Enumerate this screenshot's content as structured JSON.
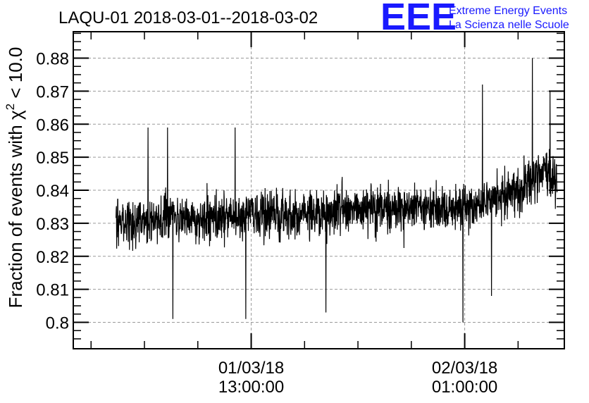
{
  "chart_data": {
    "type": "line",
    "title": "LAQU-01 2018-03-01--2018-03-02",
    "ylabel_prefix": "Fraction of events with ",
    "ylabel_symbol": "χ",
    "ylabel_sup": "2",
    "ylabel_suffix": " < 10.0",
    "xlabel": "",
    "ylim": [
      0.792,
      0.888
    ],
    "yticks": [
      "0.8",
      "0.81",
      "0.82",
      "0.83",
      "0.84",
      "0.85",
      "0.86",
      "0.87",
      "0.88"
    ],
    "ytick_values": [
      0.8,
      0.81,
      0.82,
      0.83,
      0.84,
      0.85,
      0.86,
      0.87,
      0.88
    ],
    "xlim_hours": [
      3.0,
      30.6
    ],
    "xticks": [
      {
        "hour": 13,
        "date": "01/03/18",
        "time": "13:00:00"
      },
      {
        "hour": 25,
        "date": "02/03/18",
        "time": "01:00:00"
      }
    ],
    "grid": true,
    "series_trend": [
      {
        "hour": 5.4,
        "y": 0.83
      },
      {
        "hour": 9.0,
        "y": 0.831
      },
      {
        "hour": 12.0,
        "y": 0.832
      },
      {
        "hour": 15.0,
        "y": 0.832
      },
      {
        "hour": 18.0,
        "y": 0.834
      },
      {
        "hour": 21.0,
        "y": 0.835
      },
      {
        "hour": 24.0,
        "y": 0.834
      },
      {
        "hour": 26.0,
        "y": 0.836
      },
      {
        "hour": 28.0,
        "y": 0.84
      },
      {
        "hour": 29.5,
        "y": 0.846
      },
      {
        "hour": 30.2,
        "y": 0.843
      }
    ],
    "series_extremes": [
      {
        "hour": 7.2,
        "y": 0.859
      },
      {
        "hour": 8.3,
        "y": 0.859
      },
      {
        "hour": 8.6,
        "y": 0.801
      },
      {
        "hour": 12.1,
        "y": 0.859
      },
      {
        "hour": 12.7,
        "y": 0.801
      },
      {
        "hour": 17.2,
        "y": 0.803
      },
      {
        "hour": 24.9,
        "y": 0.8
      },
      {
        "hour": 26.0,
        "y": 0.872
      },
      {
        "hour": 28.8,
        "y": 0.88
      },
      {
        "hour": 29.8,
        "y": 0.87
      },
      {
        "hour": 26.5,
        "y": 0.808
      }
    ]
  },
  "logo": {
    "mark": "EEE",
    "line1": "Extreme Energy Events",
    "line2": "La Scienza nelle Scuole",
    "color": "#1a1aff"
  }
}
